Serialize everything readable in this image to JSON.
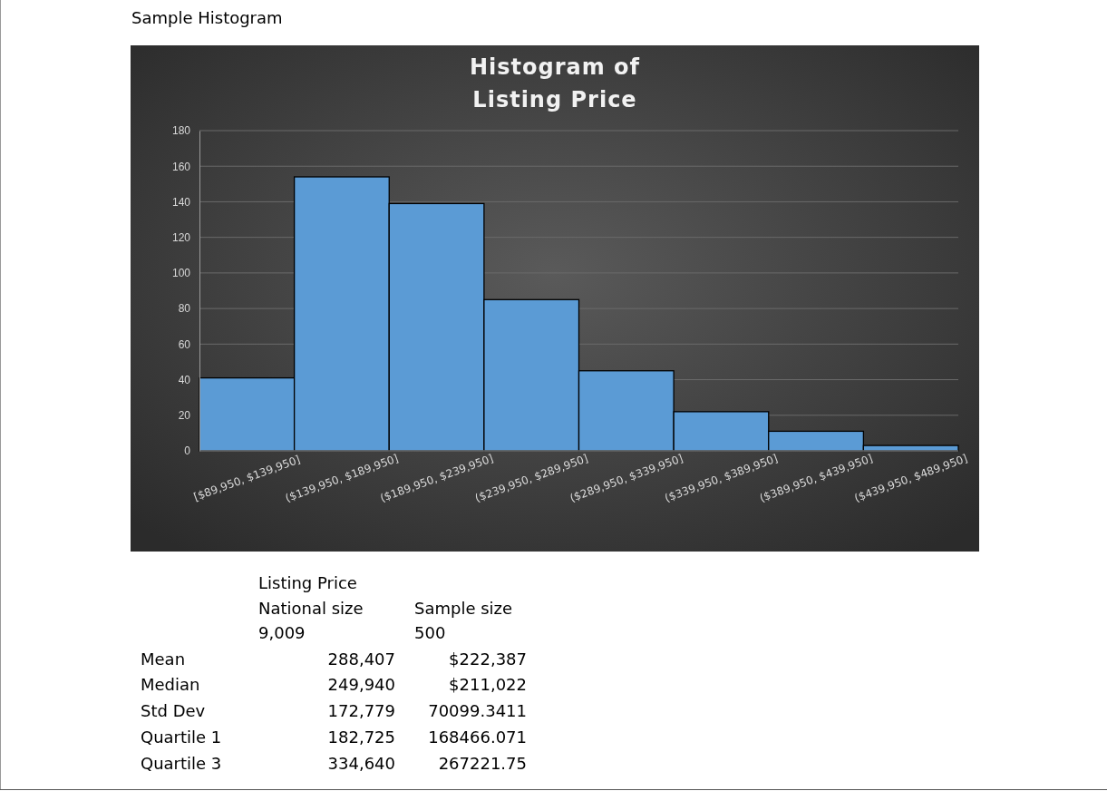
{
  "chart_data": {
    "type": "bar",
    "title": "Histogram of Listing Price",
    "categories": [
      "[$89,950, $139,950]",
      "($139,950, $189,950]",
      "($189,950, $239,950]",
      "($239,950, $289,950]",
      "($289,950, $339,950]",
      "($339,950, $389,950]",
      "($389,950, $439,950]",
      "($439,950, $489,950]"
    ],
    "values": [
      41,
      154,
      139,
      85,
      45,
      22,
      11,
      3
    ],
    "color": "#5b9bd5",
    "ylim": [
      0,
      180
    ],
    "yticks": [
      0,
      20,
      40,
      60,
      80,
      100,
      120,
      140,
      160,
      180
    ],
    "grid": "y",
    "annotations": [
      "Sample Histogram",
      "Listing Price",
      "National size",
      "Sample size",
      "9,009",
      "500",
      "Mean",
      "288,407",
      "$222,387",
      "Median",
      "249,940",
      "$211,022",
      "Std Dev",
      "172,779",
      "70099.3411",
      "Quartile 1",
      "182,725",
      "168466.071",
      "Quartile 3",
      "334,640",
      "267221.75"
    ]
  }
}
